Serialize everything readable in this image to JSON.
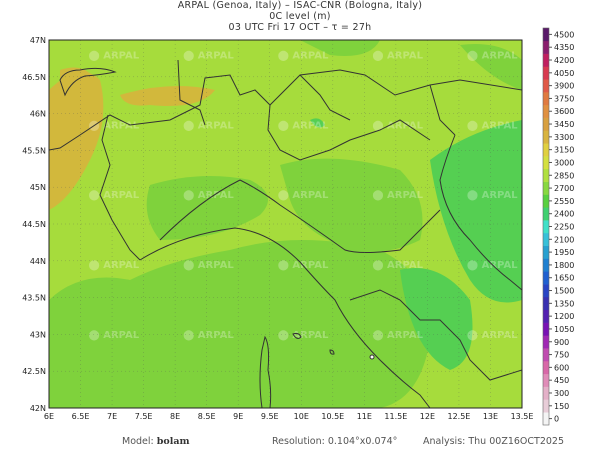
{
  "header": {
    "line1": "ARPAL (Genoa, Italy)  –  ISAC-CNR (Bologna, Italy)",
    "line2": "0C level (m)",
    "line3": "03 UTC Fri 17 OCT  –  τ = 27h"
  },
  "map": {
    "field": "0C level (m)",
    "lon_range": [
      6,
      13.5
    ],
    "lat_range": [
      42,
      47
    ],
    "lon_ticks": [
      "6E",
      "6.5E",
      "7E",
      "7.5E",
      "8E",
      "8.5E",
      "9E",
      "9.5E",
      "10E",
      "10.5E",
      "11E",
      "11.5E",
      "12E",
      "12.5E",
      "13E",
      "13.5E"
    ],
    "lat_ticks": [
      "47N",
      "46.5N",
      "46N",
      "45.5N",
      "45N",
      "44.5N",
      "44N",
      "43.5N",
      "43N",
      "42.5N",
      "42N"
    ],
    "watermark": "ARPAL",
    "colors": {
      "base": "#a6dc3c",
      "warm": "#d2b83c",
      "cool": "#7fd23c",
      "cooler": "#55cf52"
    }
  },
  "colorbar": {
    "labels": [
      "0",
      "150",
      "300",
      "450",
      "600",
      "750",
      "900",
      "1050",
      "1200",
      "1350",
      "1500",
      "1650",
      "1800",
      "1950",
      "2100",
      "2250",
      "2400",
      "2550",
      "2700",
      "2850",
      "3000",
      "3150",
      "3300",
      "3450",
      "3600",
      "3750",
      "3900",
      "4050",
      "4200",
      "4350",
      "4500"
    ],
    "colors": [
      "#f4f4f4",
      "#e8cdd8",
      "#e4b0c8",
      "#e08cb8",
      "#d868a8",
      "#c04cb0",
      "#a028b4",
      "#7812b4",
      "#5420b0",
      "#3830b0",
      "#2844c4",
      "#2060d0",
      "#2080d0",
      "#28a0d0",
      "#38c0d8",
      "#40e0c8",
      "#40d070",
      "#58d040",
      "#88d840",
      "#b0e040",
      "#d4e040",
      "#e0d040",
      "#d8b440",
      "#d8a040",
      "#e09040",
      "#e07a40",
      "#e05a48",
      "#d83a50",
      "#c02060",
      "#8a1e6e",
      "#5a1a6a"
    ]
  },
  "footer": {
    "model_label": "Model:",
    "model": "bolam",
    "resolution": "Resolution: 0.104°x0.074°",
    "analysis": "Analysis: Thu 00Z16OCT2025"
  }
}
